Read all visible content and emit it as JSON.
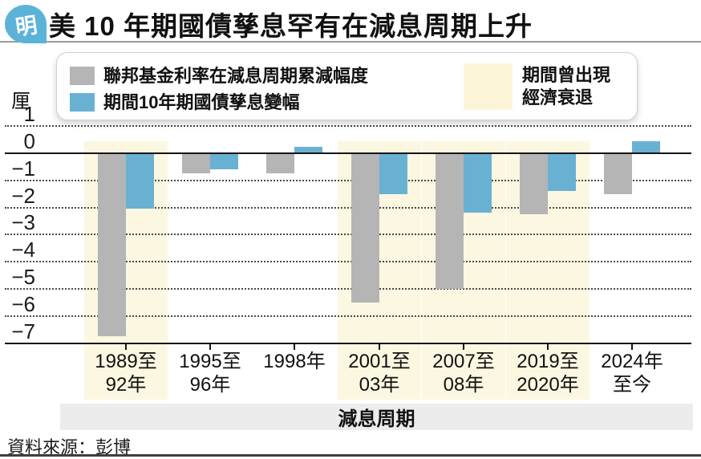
{
  "header": {
    "logo_char": "明",
    "title": "美 10 年期國債孳息罕有在減息周期上升"
  },
  "legend": {
    "items": [
      {
        "label": "聯邦基金利率在減息周期累減幅度",
        "color": "#b5b5b5"
      },
      {
        "label": "期間10年期國債孳息變幅",
        "color": "#69b1d3"
      }
    ],
    "recession": {
      "line1": "期間曾出現",
      "line2": "經濟衰退",
      "swatch_color": "#fdf5d8"
    }
  },
  "chart_data": {
    "type": "bar",
    "title": "美 10 年期國債孳息罕有在減息周期上升",
    "unit_label": "厘",
    "axis_label": "減息周期",
    "ylim": [
      -7,
      1
    ],
    "yticks": [
      1,
      0,
      -1,
      -2,
      -3,
      -4,
      -5,
      -6,
      -7
    ],
    "grid": "dotted-horizontal",
    "legend_position": "top",
    "categories": [
      {
        "label": "1989至92年",
        "lines": [
          "1989至",
          "92年"
        ],
        "recession": true
      },
      {
        "label": "1995至96年",
        "lines": [
          "1995至",
          "96年"
        ],
        "recession": false
      },
      {
        "label": "1998年",
        "lines": [
          "1998年"
        ],
        "recession": false
      },
      {
        "label": "2001至03年",
        "lines": [
          "2001至",
          "03年"
        ],
        "recession": true
      },
      {
        "label": "2007至08年",
        "lines": [
          "2007至",
          "08年"
        ],
        "recession": true
      },
      {
        "label": "2019至2020年",
        "lines": [
          "2019至",
          "2020年"
        ],
        "recession": true
      },
      {
        "label": "2024年至今",
        "lines": [
          "2024年",
          "至今"
        ],
        "recession": false
      }
    ],
    "series": [
      {
        "name": "聯邦基金利率在減息周期累減幅度",
        "color": "#b5b5b5",
        "values": [
          -6.75,
          -0.75,
          -0.75,
          -5.5,
          -5.0,
          -2.25,
          -1.5
        ]
      },
      {
        "name": "期間10年期國債孳息變幅",
        "color": "#69b1d3",
        "values": [
          -2.05,
          -0.6,
          0.25,
          -1.5,
          -2.2,
          -1.4,
          0.45
        ]
      }
    ],
    "recession_band_color": "#fcf7e1"
  },
  "footer": {
    "source": "資料來源：彭博"
  },
  "colors": {
    "bar_gray": "#b5b5b5",
    "bar_blue": "#69b1d3",
    "recession_band": "#fcf7e1",
    "legend_recession_swatch": "#fdf5d8",
    "cycle_band_bg": "#ececec",
    "logo_blue": "#5bb3d8"
  }
}
